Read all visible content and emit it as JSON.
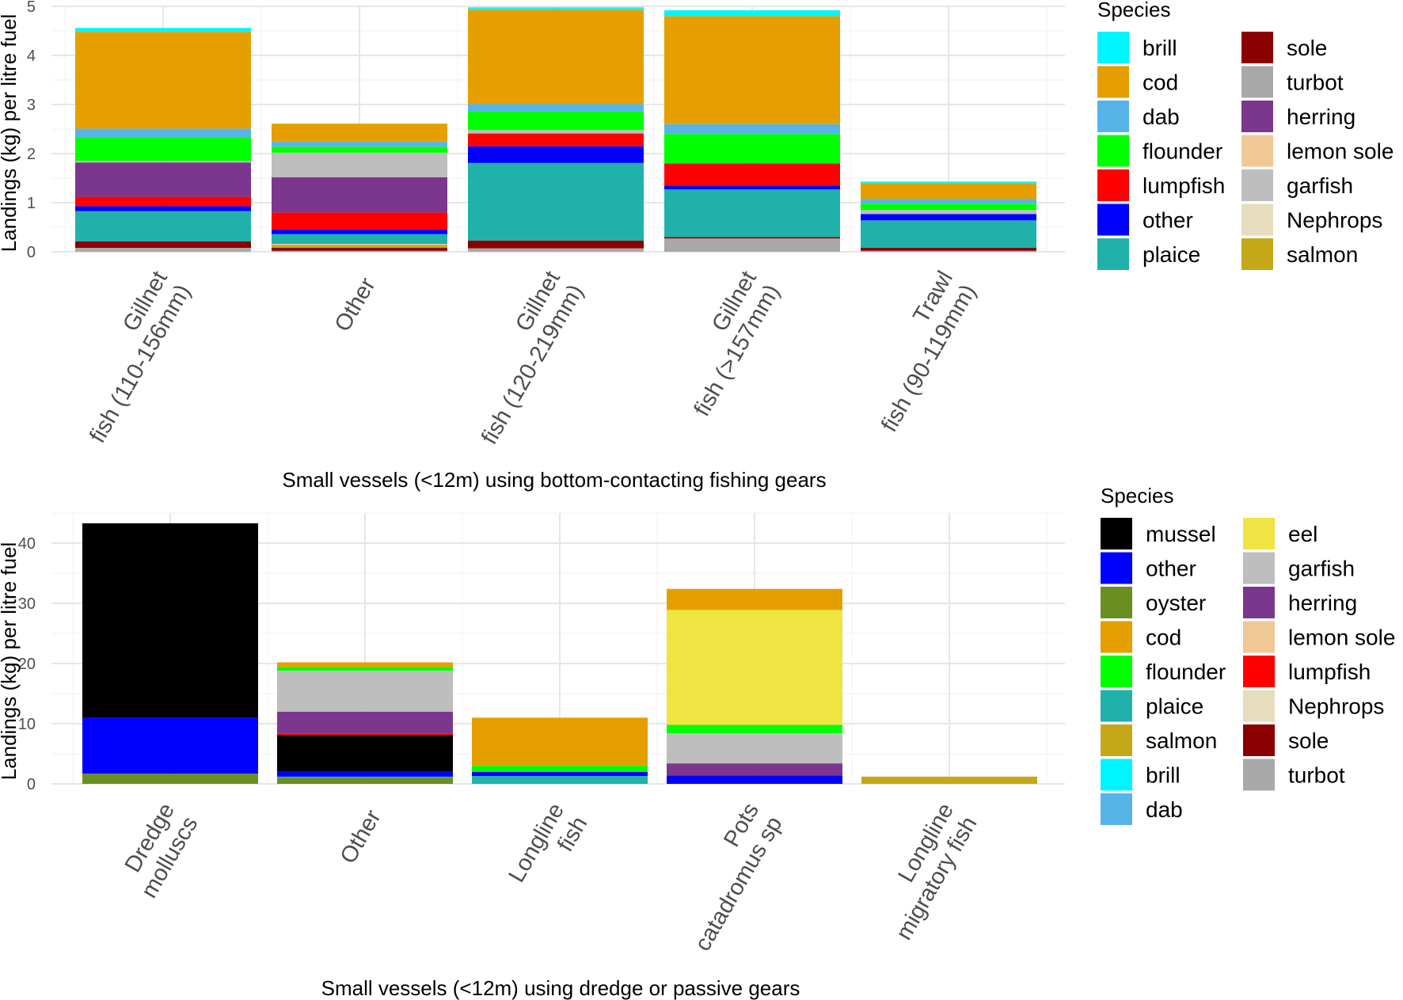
{
  "colors": {
    "brill": "#00f5ff",
    "cod": "#e69f00",
    "dab": "#56b4e9",
    "flounder": "#00ff00",
    "lumpfish": "#ff0000",
    "other": "#0000ff",
    "plaice": "#20b2aa",
    "sole": "#8b0000",
    "turbot": "#a9a9a9",
    "herring": "#7b378e",
    "lemon sole": "#f0c896",
    "garfish": "#bebebe",
    "Nephrops": "#e6ddbe",
    "salmon": "#c5a818",
    "mussel": "#000000",
    "oyster": "#6b8e23",
    "eel": "#f0e442"
  },
  "chart_data": [
    {
      "type": "bar",
      "stacked": true,
      "title": "",
      "xlabel": "Small vessels (<12m) using bottom-contacting fishing gears",
      "ylabel": "Landings (kg) per litre fuel",
      "ylim": [
        0,
        5
      ],
      "yticks": [
        0,
        1,
        2,
        3,
        4,
        5
      ],
      "categories": [
        [
          "Gillnet",
          "fish (110-156mm)"
        ],
        [
          "Other"
        ],
        [
          "Gillnet",
          "fish (120-219mm)"
        ],
        [
          "Gillnet",
          "fish (>157mm)"
        ],
        [
          "Trawl",
          "fish (90-119mm)"
        ]
      ],
      "series": [
        {
          "name": "turbot",
          "values": [
            0.08,
            0.02,
            0.07,
            0.27,
            0.02
          ]
        },
        {
          "name": "sole",
          "values": [
            0.13,
            0.06,
            0.16,
            0.03,
            0.06
          ]
        },
        {
          "name": "salmon",
          "values": [
            0,
            0.06,
            0,
            0,
            0
          ]
        },
        {
          "name": "Nephrops",
          "values": [
            0,
            0,
            0,
            0,
            0
          ]
        },
        {
          "name": "lemon sole",
          "values": [
            0,
            0.02,
            0,
            0,
            0
          ]
        },
        {
          "name": "plaice",
          "values": [
            0.62,
            0.2,
            1.58,
            0.97,
            0.56
          ]
        },
        {
          "name": "other",
          "values": [
            0.1,
            0.09,
            0.34,
            0.08,
            0.13
          ]
        },
        {
          "name": "lumpfish",
          "values": [
            0.19,
            0.35,
            0.26,
            0.45,
            0
          ]
        },
        {
          "name": "herring",
          "values": [
            0.7,
            0.72,
            0,
            0,
            0
          ]
        },
        {
          "name": "garfish",
          "values": [
            0.03,
            0.5,
            0.07,
            0,
            0.08
          ]
        },
        {
          "name": "flounder",
          "values": [
            0.48,
            0.12,
            0.38,
            0.6,
            0.13
          ]
        },
        {
          "name": "dab",
          "values": [
            0.18,
            0.1,
            0.15,
            0.2,
            0.1
          ]
        },
        {
          "name": "cod",
          "values": [
            1.97,
            0.37,
            1.92,
            2.2,
            0.32
          ]
        },
        {
          "name": "brill",
          "values": [
            0.08,
            0,
            0.05,
            0.12,
            0.03
          ]
        }
      ],
      "legend": {
        "title": "Species",
        "position": "right",
        "columns": [
          [
            "brill",
            "cod",
            "dab",
            "flounder",
            "lumpfish",
            "other",
            "plaice"
          ],
          [
            "sole",
            "turbot",
            "herring",
            "lemon sole",
            "garfish",
            "Nephrops",
            "salmon"
          ]
        ]
      }
    },
    {
      "type": "bar",
      "stacked": true,
      "title": "",
      "xlabel": "Small vessels (<12m) using dredge or passive gears",
      "ylabel": "Landings (kg) per litre fuel",
      "ylim": [
        0,
        45
      ],
      "yticks": [
        0,
        10,
        20,
        30,
        40
      ],
      "categories": [
        [
          "Dredge",
          "molluscs"
        ],
        [
          "Other"
        ],
        [
          "Longline",
          "fish"
        ],
        [
          "Pots",
          "catadromus sp"
        ],
        [
          "Longline",
          "migratory fish"
        ]
      ],
      "series": [
        {
          "name": "oyster",
          "values": [
            1.7,
            1.0,
            0,
            0,
            0
          ]
        },
        {
          "name": "salmon",
          "values": [
            0,
            0,
            0,
            0,
            1.2
          ]
        },
        {
          "name": "plaice",
          "values": [
            0,
            0.2,
            1.3,
            0,
            0
          ]
        },
        {
          "name": "other",
          "values": [
            9.3,
            0.9,
            0.7,
            1.4,
            0
          ]
        },
        {
          "name": "mussel",
          "values": [
            32.3,
            6.0,
            0,
            0,
            0
          ]
        },
        {
          "name": "lumpfish",
          "values": [
            0,
            0.2,
            0,
            0,
            0
          ]
        },
        {
          "name": "herring",
          "values": [
            0,
            3.7,
            0,
            2.0,
            0
          ]
        },
        {
          "name": "garfish",
          "values": [
            0,
            6.8,
            0,
            5.0,
            0
          ]
        },
        {
          "name": "flounder",
          "values": [
            0,
            0.6,
            1.0,
            1.4,
            0
          ]
        },
        {
          "name": "eel",
          "values": [
            0,
            0,
            0,
            19.1,
            0
          ]
        },
        {
          "name": "cod",
          "values": [
            0,
            0.8,
            8.0,
            3.5,
            0
          ]
        }
      ],
      "legend": {
        "title": "Species",
        "position": "right",
        "columns": [
          [
            "mussel",
            "other",
            "oyster",
            "cod",
            "flounder",
            "plaice",
            "salmon",
            "brill",
            "dab"
          ],
          [
            "eel",
            "garfish",
            "herring",
            "lemon sole",
            "lumpfish",
            "Nephrops",
            "sole",
            "turbot"
          ]
        ]
      }
    }
  ]
}
